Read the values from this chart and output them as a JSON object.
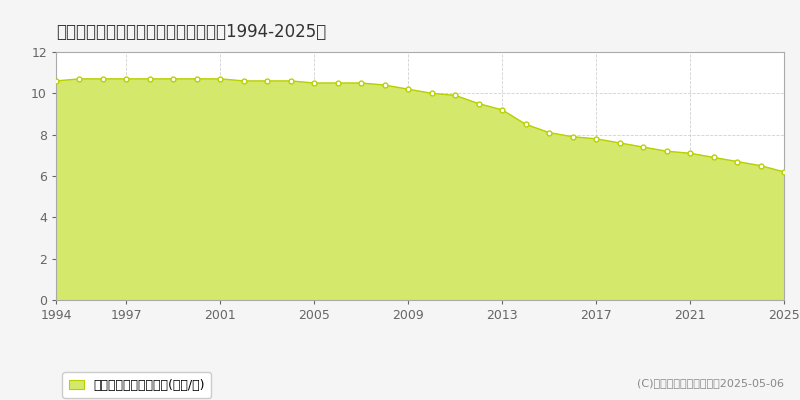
{
  "title": "鹿足郡津和野町鷲原　公示地価推移［1994-2025］",
  "years": [
    1994,
    1995,
    1996,
    1997,
    1998,
    1999,
    2000,
    2001,
    2002,
    2003,
    2004,
    2005,
    2006,
    2007,
    2008,
    2009,
    2010,
    2011,
    2012,
    2013,
    2014,
    2015,
    2016,
    2017,
    2018,
    2019,
    2020,
    2021,
    2022,
    2023,
    2024,
    2025
  ],
  "values": [
    10.6,
    10.7,
    10.7,
    10.7,
    10.7,
    10.7,
    10.7,
    10.7,
    10.6,
    10.6,
    10.6,
    10.5,
    10.5,
    10.5,
    10.4,
    10.2,
    10.0,
    9.9,
    9.5,
    9.2,
    8.5,
    8.1,
    7.9,
    7.8,
    7.6,
    7.4,
    7.2,
    7.1,
    6.9,
    6.7,
    6.5,
    6.2
  ],
  "fill_color": "#d4e96b",
  "line_color": "#b8d000",
  "marker_facecolor": "#ffffff",
  "marker_edgecolor": "#b8d000",
  "bg_color": "#f5f5f5",
  "plot_bg_color": "#ffffff",
  "grid_color": "#cccccc",
  "ylim": [
    0,
    12
  ],
  "yticks": [
    0,
    2,
    4,
    6,
    8,
    10,
    12
  ],
  "xticks": [
    1994,
    1997,
    2001,
    2005,
    2009,
    2013,
    2017,
    2021,
    2025
  ],
  "legend_label": "公示地価　平均坪単価(万円/坪)",
  "copyright": "(C)土地価格ドットコム　2025-05-06",
  "title_fontsize": 12,
  "axis_fontsize": 9,
  "legend_fontsize": 9,
  "copyright_fontsize": 8,
  "tick_color": "#666666",
  "spine_color": "#aaaaaa",
  "title_color": "#333333",
  "copyright_color": "#888888"
}
